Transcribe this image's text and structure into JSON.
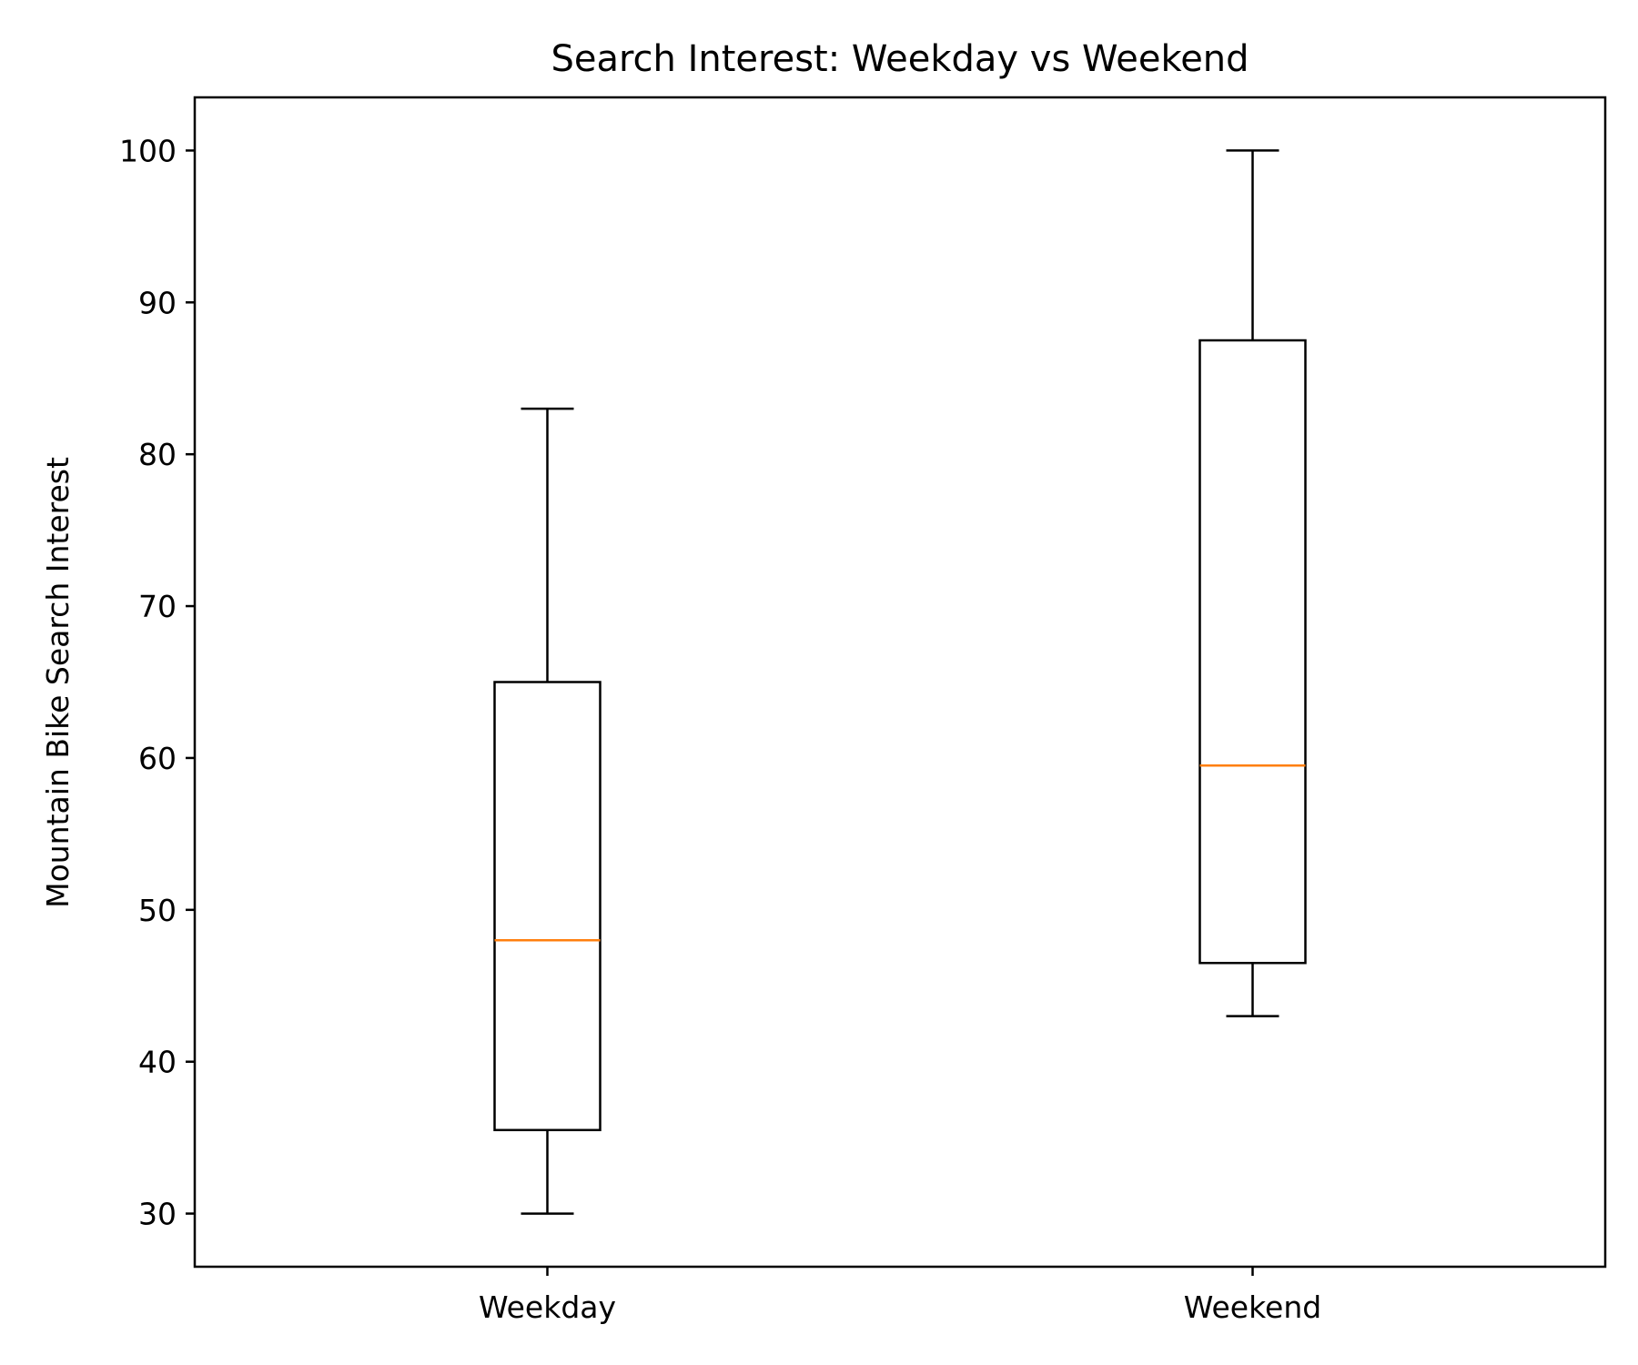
{
  "chart_data": {
    "type": "box",
    "title": "Search Interest: Weekday vs Weekend",
    "xlabel": "",
    "ylabel": "Mountain Bike Search Interest",
    "ylim": [
      26.5,
      103.5
    ],
    "yticks": [
      30,
      40,
      50,
      60,
      70,
      80,
      90,
      100
    ],
    "grid": false,
    "categories": [
      "Weekday",
      "Weekend"
    ],
    "boxes": [
      {
        "category": "Weekday",
        "min": 30,
        "q1": 35.5,
        "median": 48,
        "q3": 65,
        "max": 83
      },
      {
        "category": "Weekend",
        "min": 43,
        "q1": 46.5,
        "median": 59.5,
        "q3": 87.5,
        "max": 100
      }
    ],
    "colors": {
      "box": "#000000",
      "median": "#ff7f0e",
      "background": "#ffffff"
    }
  }
}
